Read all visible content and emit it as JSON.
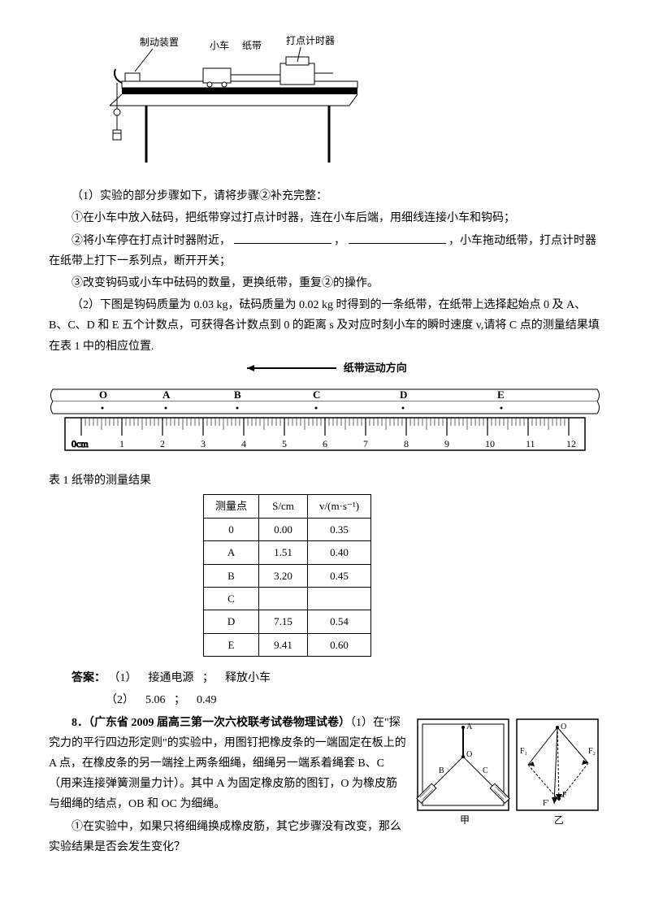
{
  "exp_fig": {
    "labels": {
      "brake": "制动装置",
      "cart": "小车",
      "tape": "纸带",
      "timer": "打点计时器"
    }
  },
  "q1": {
    "intro": "（1）实验的部分步骤如下，请将步骤②补充完整：",
    "step1": "①在小车中放入砝码，把纸带穿过打点计时器，连在小车后端，用细线连接小车和钩码；",
    "step2a": "②将小车停在打点计时器附近，",
    "step2b": "，",
    "step2c": "，小车拖动纸带，打点计时器在纸带上打下一系列点，断开开关；",
    "step3": "③改变钩码或小车中砝码的数量，更换纸带，重复②的操作。"
  },
  "q2": {
    "text": "（2）下图是钩码质量为 0.03 kg，砝码质量为 0.02 kg 时得到的一条纸带，在纸带上选择起始点 0 及 A、B、C、D 和 E 五个计数点，可获得各计数点到 0 的距离 s 及对应时刻小车的瞬时速度 v,请将 C 点的测量结果填在表 1 中的相应位置."
  },
  "tape_direction": "纸带运动方向",
  "ruler": {
    "points": [
      "O",
      "A",
      "B",
      "C",
      "D",
      "E"
    ],
    "unit_left": "0cm",
    "ticks": [
      "1",
      "2",
      "3",
      "4",
      "5",
      "6",
      "7",
      "8",
      "9",
      "10",
      "11",
      "12"
    ]
  },
  "table": {
    "caption": "表 1 纸带的测量结果",
    "headers": {
      "pt": "测量点",
      "s": "S/cm",
      "v": "v/(m·s⁻¹)"
    },
    "rows": [
      {
        "pt": "0",
        "s": "0.00",
        "v": "0.35"
      },
      {
        "pt": "A",
        "s": "1.51",
        "v": "0.40"
      },
      {
        "pt": "B",
        "s": "3.20",
        "v": "0.45"
      },
      {
        "pt": "C",
        "s": "",
        "v": ""
      },
      {
        "pt": "D",
        "s": "7.15",
        "v": "0.54"
      },
      {
        "pt": "E",
        "s": "9.41",
        "v": "0.60"
      }
    ]
  },
  "answer": {
    "label": "答案：",
    "line1a": "（1）",
    "line1b": "接通电源",
    "line1c": "；",
    "line1d": "释放小车",
    "line2a": "（2）",
    "line2b": "5.06",
    "line2c": "；",
    "line2d": "0.49"
  },
  "q8": {
    "header": "8．（广东省 2009 届高三第一次六校联考试卷物理试卷）",
    "body1": "（1）在\"探究力的平行四边形定则\"的实验中，用图钉把橡皮条的一端固定在板上的 A 点，在橡皮条的另一端拴上两条细绳，细绳另一端系着绳套 B、C（用来连接弹簧测量力计）。其中 A 为固定橡皮筋的图钉，O 为橡皮筋与细绳的结点，OB 和 OC 为细绳。",
    "sub1": "①在实验中，如果只将细绳换成橡皮筋，其它步骤没有改变，那么实验结果是否会发生变化？",
    "fig_labels": {
      "A": "A",
      "O": "O",
      "B": "B",
      "C": "C",
      "F1": "F₁",
      "F2": "F₂",
      "F": "F",
      "Fp": "F′",
      "jia": "甲",
      "yi": "乙"
    }
  }
}
